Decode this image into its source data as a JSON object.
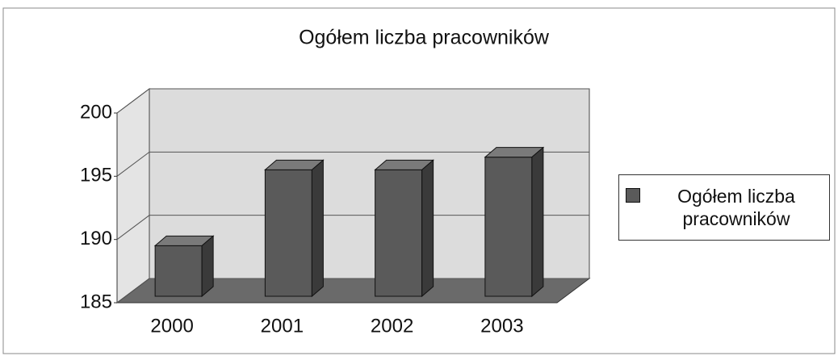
{
  "chart_data": {
    "type": "bar3d",
    "title": "Ogółem liczba pracowników",
    "categories": [
      "2000",
      "2001",
      "2002",
      "2003"
    ],
    "series": [
      {
        "name": "Ogółem liczba pracowników",
        "color": "#5a5a5a",
        "values": [
          189,
          195,
          195,
          196
        ]
      }
    ],
    "ylim": [
      185,
      200
    ],
    "yticks": [
      185,
      190,
      195,
      200
    ],
    "grid": true,
    "legend": "right"
  }
}
